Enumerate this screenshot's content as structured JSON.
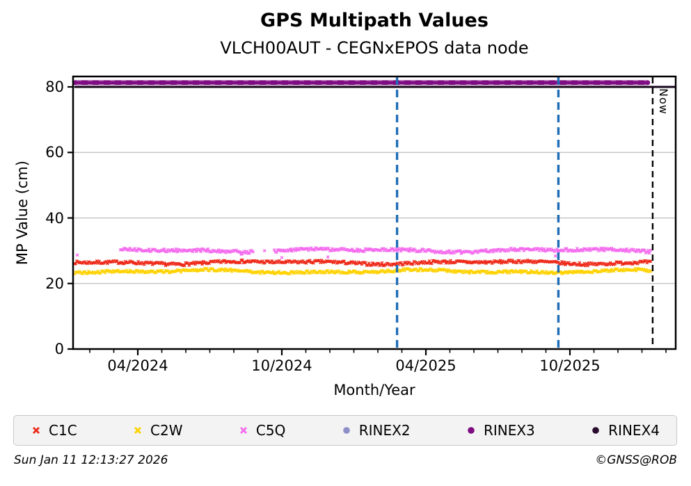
{
  "chart_data": {
    "type": "scatter",
    "title": "GPS Multipath Values",
    "subtitle": "VLCH00AUT - CEGNxEPOS data node",
    "xlabel": "Month/Year",
    "ylabel": "MP Value (cm)",
    "ylim": [
      0,
      83.2
    ],
    "y_ticks": [
      0,
      20,
      40,
      60,
      80
    ],
    "x_domain_years": [
      2024.02,
      2026.12
    ],
    "x_ticks": [
      {
        "label": "04/2024",
        "year": 2024.25
      },
      {
        "label": "10/2024",
        "year": 2024.75
      },
      {
        "label": "04/2025",
        "year": 2025.25
      },
      {
        "label": "10/2025",
        "year": 2025.75
      }
    ],
    "x_minor_tick_step_months": 1,
    "grid": "horizontal-only",
    "grid_color": "#bdbdbd",
    "series": [
      {
        "name": "C1C",
        "color": "#ee2a1a",
        "marker": "cross",
        "mean_cm": 26.4,
        "spread_cm": 0.45,
        "start_year": 2024.03,
        "end_year": 2026.03,
        "gaps": [],
        "extra_points": []
      },
      {
        "name": "C2W",
        "color": "#ffd200",
        "marker": "cross",
        "mean_cm": 23.7,
        "spread_cm": 0.4,
        "start_year": 2024.03,
        "end_year": 2026.03,
        "gaps": [],
        "extra_points": []
      },
      {
        "name": "C5Q",
        "color": "#f46bee",
        "marker": "cross",
        "mean_cm": 30.1,
        "spread_cm": 0.45,
        "start_year": 2024.19,
        "end_year": 2026.03,
        "gaps": [
          [
            2024.65,
            2024.72
          ]
        ],
        "extra_points": [
          [
            2024.04,
            28.7
          ],
          [
            2024.61,
            28.9
          ],
          [
            2024.69,
            30.0
          ],
          [
            2024.75,
            27.9
          ],
          [
            2024.91,
            28.1
          ],
          [
            2025.7,
            28.4
          ]
        ]
      }
    ],
    "availability_lines": [
      {
        "name": "RINEX3",
        "value_cm": 81.3,
        "color": "#7d0d80",
        "start_year": 2024.03,
        "end_year": 2026.02,
        "thickness": 7
      },
      {
        "name": "RINEX4",
        "value_cm": 80.0,
        "color": "#15051a",
        "start_year": 2024.02,
        "end_year": 2026.12,
        "thickness": 3
      }
    ],
    "event_lines": [
      {
        "year": 2025.15,
        "style": "dashed",
        "color": "#1f6db6"
      },
      {
        "year": 2025.71,
        "style": "dashed",
        "color": "#1f6db6"
      }
    ],
    "now_line": {
      "year": 2026.03,
      "label": "Now",
      "style": "dashed",
      "color": "#000000"
    },
    "legend": {
      "position": "bottom",
      "items": [
        {
          "label": "C1C",
          "marker": "cross",
          "color": "#ee2a1a"
        },
        {
          "label": "C2W",
          "marker": "cross",
          "color": "#ffd200"
        },
        {
          "label": "C5Q",
          "marker": "cross",
          "color": "#f46bee"
        },
        {
          "label": "RINEX2",
          "marker": "dot",
          "color": "#8d8dc7"
        },
        {
          "label": "RINEX3",
          "marker": "dot",
          "color": "#7d0d80"
        },
        {
          "label": "RINEX4",
          "marker": "dot",
          "color": "#2a0a2e"
        }
      ]
    }
  },
  "footer": {
    "timestamp": "Sun Jan 11 12:13:27 2026",
    "copyright": "©GNSS@ROB"
  }
}
